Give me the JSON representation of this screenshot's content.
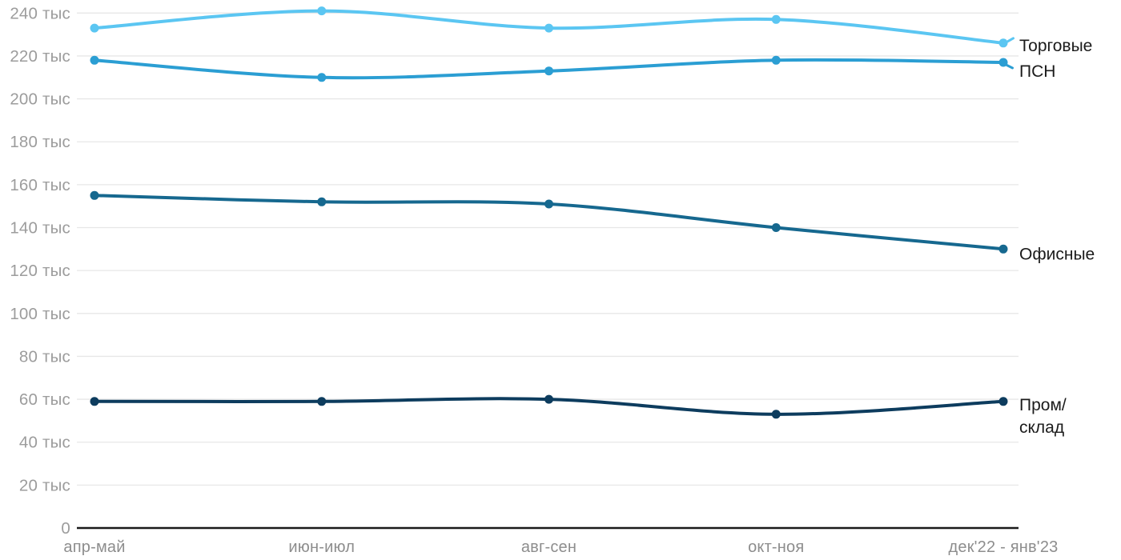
{
  "chart_data": {
    "type": "line",
    "title": "",
    "x_categories": [
      "апр-май",
      "июн-июл",
      "авг-сен",
      "окт-ноя",
      "дек'22 - янв'23"
    ],
    "y_axis": {
      "min": 0,
      "max": 240,
      "step": 20,
      "unit": "тыс",
      "tick_labels": [
        "0",
        "20 тыс",
        "40 тыс",
        "60 тыс",
        "80 тыс",
        "100 тыс",
        "120 тыс",
        "140 тыс",
        "160 тыс",
        "180 тыс",
        "200 тыс",
        "220 тыс",
        "240 тыс"
      ]
    },
    "grid": true,
    "legend_position": "right-direct-labels",
    "line_style": "smoothed",
    "series": [
      {
        "name": "Торговые",
        "label_lines": [
          "Торговые"
        ],
        "color": "#5bc6f2",
        "values": [
          233,
          241,
          233,
          237,
          226
        ]
      },
      {
        "name": "ПСН",
        "label_lines": [
          "ПСН"
        ],
        "color": "#2b9ed3",
        "values": [
          218,
          210,
          213,
          218,
          217
        ]
      },
      {
        "name": "Офисные",
        "label_lines": [
          "Офисные"
        ],
        "color": "#16688f",
        "values": [
          155,
          152,
          151,
          140,
          130
        ]
      },
      {
        "name": "Пром/склад",
        "label_lines": [
          "Пром/",
          "склад"
        ],
        "color": "#0d3c5e",
        "values": [
          59,
          59,
          60,
          53,
          59
        ]
      }
    ],
    "colors": {
      "background": "#ffffff",
      "grid": "#e7e7e7",
      "axis": "#1a1a1a",
      "y_tick_text": "#9c9c9c",
      "x_tick_text": "#8d8d8d",
      "series_label_text": "#1b1b1b"
    }
  }
}
